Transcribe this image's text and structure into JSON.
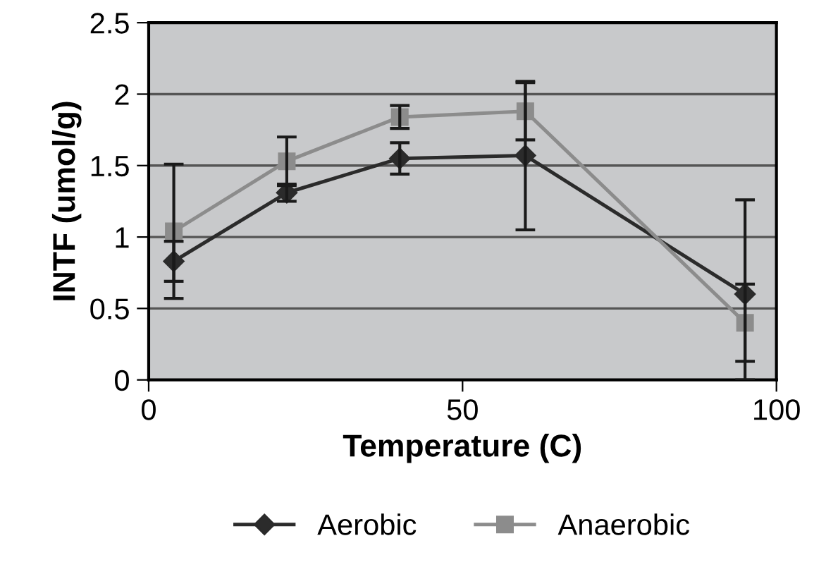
{
  "chart_data": {
    "type": "line",
    "xlabel": "Temperature (C)",
    "ylabel": "INTF (umol/g)",
    "xlim": [
      0,
      100
    ],
    "xticks": [
      0,
      50,
      100
    ],
    "ylim": [
      0,
      2.5
    ],
    "yticks": [
      0,
      0.5,
      1,
      1.5,
      2,
      2.5
    ],
    "grid": "y",
    "legend": "bottom",
    "line_style": "solid",
    "series": [
      {
        "name": "Aerobic",
        "color": "#2b2b2b",
        "marker": "diamond",
        "x": [
          4,
          22,
          40,
          60,
          95
        ],
        "values": [
          0.83,
          1.31,
          1.55,
          1.57,
          0.6
        ],
        "errors": [
          0.14,
          0.06,
          0.11,
          0.52,
          [
            0,
            1.26
          ]
        ]
      },
      {
        "name": "Anaerobic",
        "color": "#8c8c8c",
        "marker": "square",
        "x": [
          4,
          22,
          40,
          60,
          95
        ],
        "values": [
          1.04,
          1.53,
          1.84,
          1.88,
          0.4
        ],
        "errors": [
          0.47,
          0.17,
          0.08,
          0.2,
          0.27
        ]
      }
    ]
  }
}
